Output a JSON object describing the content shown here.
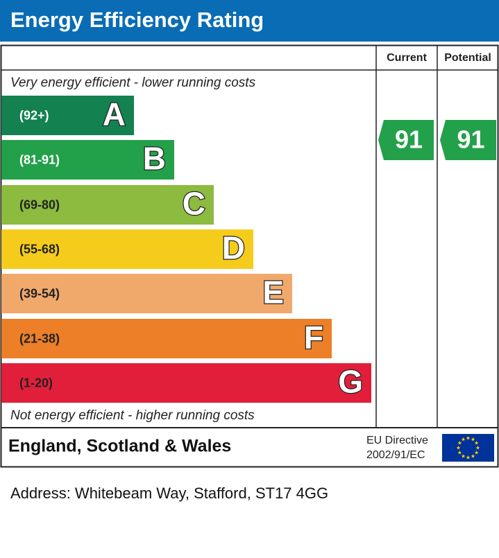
{
  "header": {
    "title": "Energy Efficiency Rating"
  },
  "columns": {
    "current": "Current",
    "potential": "Potential"
  },
  "top_note": "Very energy efficient - lower running costs",
  "bottom_note": "Not energy efficient - higher running costs",
  "bands": [
    {
      "range": "(92+)",
      "letter": "A",
      "color": "#138150"
    },
    {
      "range": "(81-91)",
      "letter": "B",
      "color": "#23a04a"
    },
    {
      "range": "(69-80)",
      "letter": "C",
      "color": "#8cbb3f"
    },
    {
      "range": "(55-68)",
      "letter": "D",
      "color": "#f5cc1b"
    },
    {
      "range": "(39-54)",
      "letter": "E",
      "color": "#f1a96b"
    },
    {
      "range": "(21-38)",
      "letter": "F",
      "color": "#ec7f27"
    },
    {
      "range": "(1-20)",
      "letter": "G",
      "color": "#e21f3b"
    }
  ],
  "ratings": {
    "current": 91,
    "potential": 91,
    "color": "#23a04a"
  },
  "footer": {
    "region": "England, Scotland & Wales",
    "directive_line1": "EU Directive",
    "directive_line2": "2002/91/EC"
  },
  "address": "Address: Whitebeam Way, Stafford, ST17 4GG"
}
